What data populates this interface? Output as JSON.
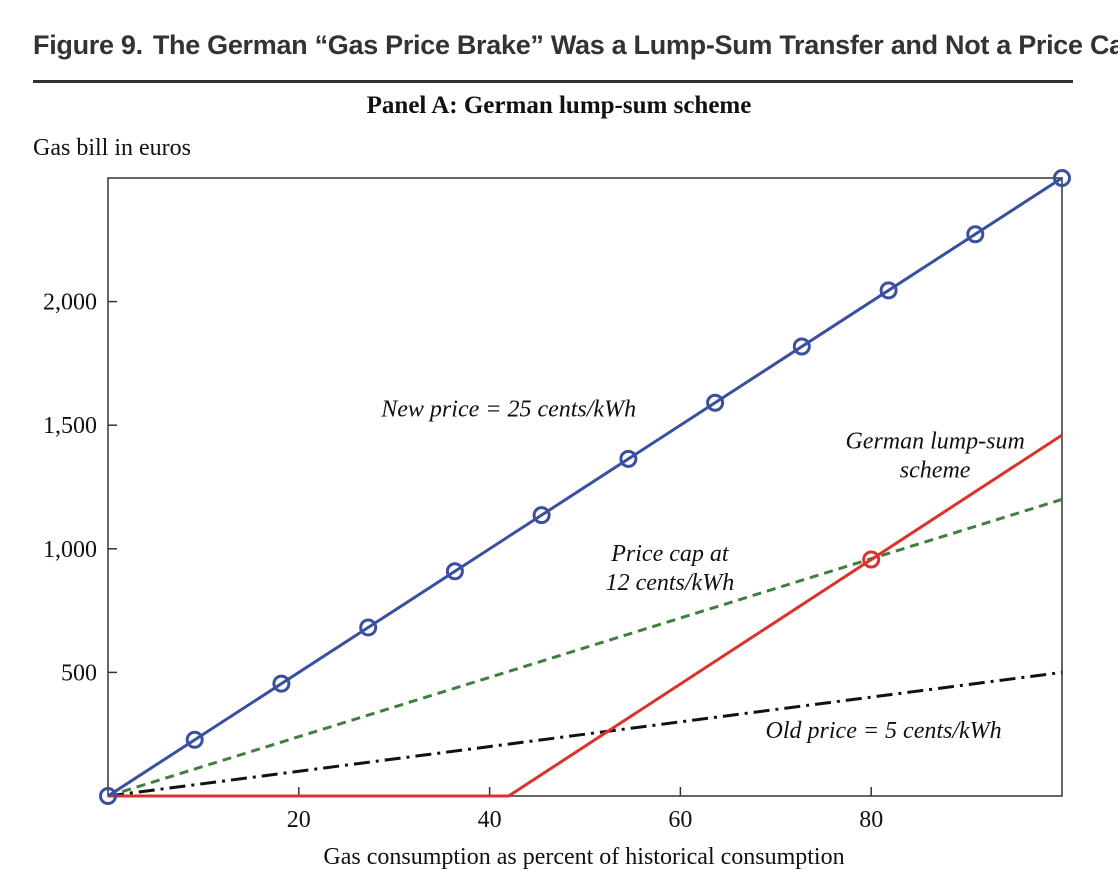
{
  "figure": {
    "number": "Figure 9.",
    "title": "The German “Gas Price Brake” Was a Lump-Sum Transfer and Not a Price Cap"
  },
  "chart_data": {
    "type": "line",
    "title": "Panel A: German lump-sum scheme",
    "xlabel": "Gas consumption as percent of historical consumption",
    "ylabel": "Gas bill in euros",
    "xlim": [
      0,
      100
    ],
    "ylim": [
      0,
      2500
    ],
    "x_ticks": [
      20,
      40,
      60,
      80
    ],
    "x_tick_labels": [
      "20",
      "40",
      "60",
      "80"
    ],
    "y_ticks": [
      500,
      1000,
      1500,
      2000
    ],
    "y_tick_labels": [
      "500",
      "1,000",
      "1,500",
      "2,000"
    ],
    "grid": false,
    "series": [
      {
        "name": "New price = 25 cents/kWh",
        "color": "#3a4f9e",
        "style": "solid",
        "x": [
          0,
          100
        ],
        "y": [
          0,
          2500
        ],
        "markers_x": [
          0,
          9.09,
          18.18,
          27.27,
          36.36,
          45.45,
          54.55,
          63.64,
          72.73,
          81.82,
          90.91,
          100
        ],
        "marker": "open-circle"
      },
      {
        "name": "Price cap at 12 cents/kWh",
        "color": "#3f7f3f",
        "style": "dashed",
        "x": [
          0,
          100
        ],
        "y": [
          0,
          1200
        ]
      },
      {
        "name": "Old price = 5 cents/kWh",
        "color": "#111111",
        "style": "dashdot",
        "x": [
          0,
          100
        ],
        "y": [
          0,
          500
        ]
      },
      {
        "name": "German lump-sum scheme",
        "color": "#d9342b",
        "style": "solid",
        "x": [
          0,
          42,
          100
        ],
        "y": [
          0,
          0,
          1460
        ],
        "markers_x": [
          80
        ],
        "marker": "open-circle"
      }
    ],
    "annotations": [
      {
        "lines": [
          "New price = 25 cents/kWh"
        ],
        "x": 42,
        "y": 1535,
        "anchor": "middle"
      },
      {
        "lines": [
          "German lump-sum",
          "scheme"
        ],
        "x": 86.7,
        "y": 1405,
        "anchor": "middle"
      },
      {
        "lines": [
          "Price cap at",
          "12 cents/kWh"
        ],
        "x": 58.9,
        "y": 950,
        "anchor": "middle"
      },
      {
        "lines": [
          "Old price = 5 cents/kWh"
        ],
        "x": 81.3,
        "y": 235,
        "anchor": "middle"
      }
    ]
  }
}
